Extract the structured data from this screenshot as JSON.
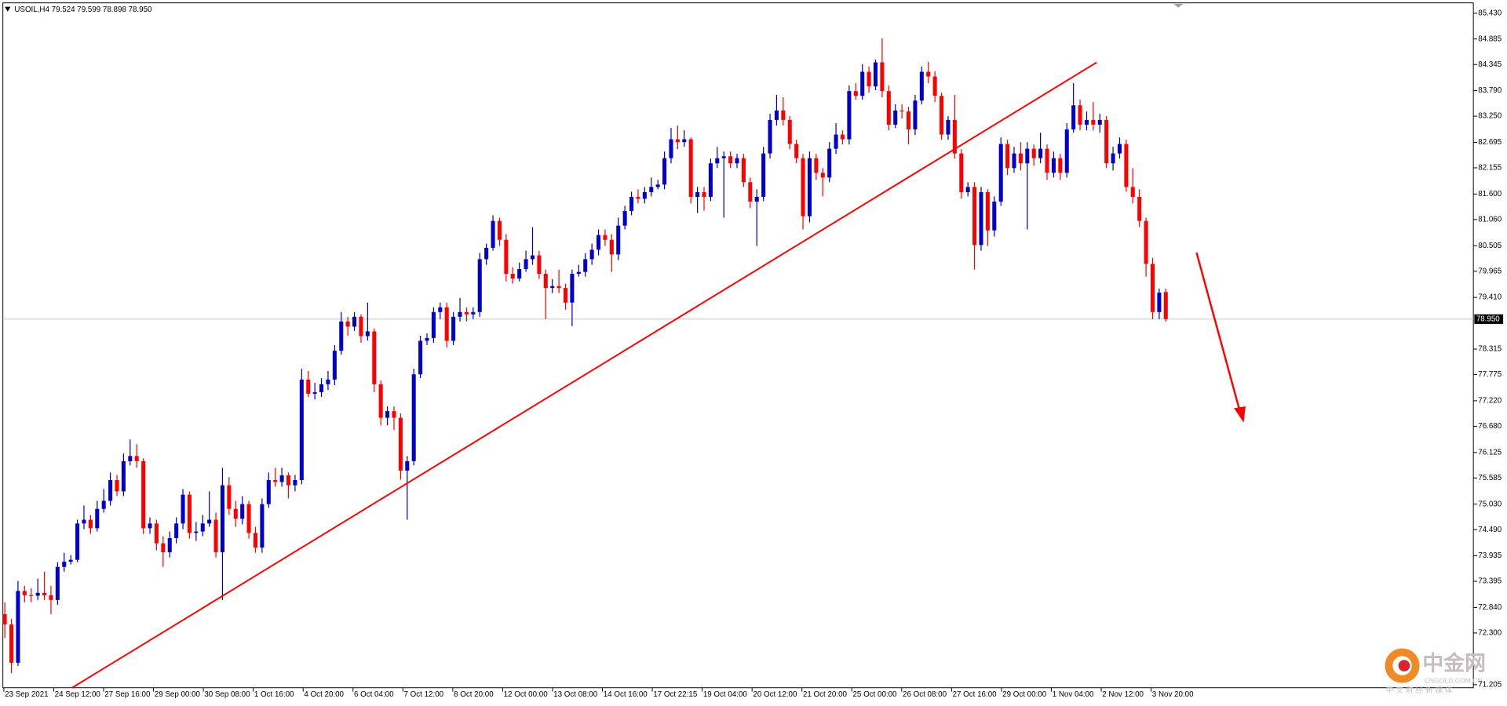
{
  "chart_data": {
    "type": "candlestick",
    "title": "USOIL,H4  79.524 79.599 78.898 78.950",
    "up_color": "#0000cd",
    "down_color": "#ff0000",
    "ylim": [
      71.14,
      85.65
    ],
    "yticks": [
      {
        "value": 85.43,
        "label": "85.430"
      },
      84.885,
      84.345,
      {
        "value": 83.79,
        "label": "83.790"
      },
      {
        "value": 83.25,
        "label": "83.250"
      },
      82.695,
      82.155,
      {
        "value": 81.6,
        "label": "81.600"
      },
      {
        "value": 81.06,
        "label": "81.060"
      },
      80.505,
      79.965,
      {
        "value": 79.41,
        "label": "79.410"
      },
      78.315,
      77.775,
      {
        "value": 77.22,
        "label": "77.220"
      },
      {
        "value": 76.68,
        "label": "76.680"
      },
      76.125,
      75.585,
      {
        "value": 75.03,
        "label": "75.030"
      },
      {
        "value": 74.49,
        "label": "74.490"
      },
      73.935,
      73.395,
      {
        "value": 72.84,
        "label": "72.840"
      },
      {
        "value": 72.3,
        "label": "72.300"
      },
      71.205
    ],
    "last_price": {
      "value": 78.95,
      "label": "78.950"
    },
    "xticks": [
      "23 Sep 2021",
      "24 Sep 12:00",
      "27 Sep 16:00",
      "29 Sep 00:00",
      "30 Sep 08:00",
      "1 Oct 16:00",
      "4 Oct 20:00",
      "6 Oct 04:00",
      "7 Oct 12:00",
      "8 Oct 20:00",
      "12 Oct 00:00",
      "13 Oct 08:00",
      "14 Oct 16:00",
      "17 Oct 22:15",
      "19 Oct 04:00",
      "20 Oct 12:00",
      "21 Oct 20:00",
      "25 Oct 00:00",
      "26 Oct 08:00",
      "27 Oct 16:00",
      "29 Oct 00:00",
      "1 Nov 04:00",
      "2 Nov 12:00",
      "3 Nov 20:00"
    ],
    "candles": [
      [
        72.7,
        72.95,
        72.2,
        72.48
      ],
      [
        72.48,
        72.6,
        71.45,
        71.67
      ],
      [
        71.67,
        73.4,
        71.6,
        73.19
      ],
      [
        73.19,
        73.3,
        72.95,
        73.1
      ],
      [
        73.1,
        73.25,
        72.95,
        73.09
      ],
      [
        73.09,
        73.45,
        73.0,
        73.15
      ],
      [
        73.15,
        73.6,
        73.0,
        73.1
      ],
      [
        73.1,
        73.3,
        72.7,
        73.0
      ],
      [
        73.0,
        73.8,
        72.9,
        73.7
      ],
      [
        73.7,
        74.0,
        73.6,
        73.81
      ],
      [
        73.81,
        73.95,
        73.75,
        73.85
      ],
      [
        73.85,
        74.7,
        73.8,
        74.62
      ],
      [
        74.62,
        75.0,
        74.5,
        74.7
      ],
      [
        74.7,
        74.8,
        74.4,
        74.52
      ],
      [
        74.52,
        75.1,
        74.45,
        74.93
      ],
      [
        74.93,
        75.35,
        74.85,
        75.1
      ],
      [
        75.1,
        75.7,
        75.0,
        75.54
      ],
      [
        75.54,
        75.65,
        75.2,
        75.3
      ],
      [
        75.3,
        76.1,
        75.2,
        75.94
      ],
      [
        75.94,
        76.4,
        75.85,
        76.05
      ],
      [
        76.05,
        76.3,
        75.8,
        75.94
      ],
      [
        75.94,
        76.0,
        74.4,
        74.52
      ],
      [
        74.52,
        74.75,
        74.4,
        74.62
      ],
      [
        74.62,
        74.7,
        74.05,
        74.2
      ],
      [
        74.2,
        74.35,
        73.7,
        74.01
      ],
      [
        74.01,
        74.45,
        73.9,
        74.31
      ],
      [
        74.31,
        74.75,
        74.2,
        74.62
      ],
      [
        74.62,
        75.35,
        74.5,
        75.23
      ],
      [
        75.23,
        75.3,
        74.3,
        74.42
      ],
      [
        74.42,
        74.65,
        74.25,
        74.45
      ],
      [
        74.45,
        74.8,
        74.35,
        74.62
      ],
      [
        74.62,
        75.3,
        74.55,
        74.7
      ],
      [
        74.7,
        74.85,
        73.9,
        74.01
      ],
      [
        74.01,
        75.8,
        73.0,
        75.43
      ],
      [
        75.43,
        75.6,
        74.8,
        74.93
      ],
      [
        74.93,
        75.1,
        74.55,
        74.72
      ],
      [
        74.72,
        75.2,
        74.6,
        75.03
      ],
      [
        75.03,
        75.1,
        74.3,
        74.42
      ],
      [
        74.42,
        74.55,
        74.0,
        74.11
      ],
      [
        74.11,
        75.15,
        74.0,
        75.03
      ],
      [
        75.03,
        75.7,
        74.95,
        75.54
      ],
      [
        75.54,
        75.8,
        75.4,
        75.5
      ],
      [
        75.5,
        75.8,
        75.4,
        75.64
      ],
      [
        75.64,
        75.7,
        75.15,
        75.43
      ],
      [
        75.43,
        75.65,
        75.3,
        75.54
      ],
      [
        75.54,
        77.9,
        75.45,
        77.67
      ],
      [
        77.67,
        77.85,
        77.3,
        77.37
      ],
      [
        77.37,
        77.6,
        77.25,
        77.4
      ],
      [
        77.4,
        77.7,
        77.3,
        77.57
      ],
      [
        77.57,
        77.85,
        77.45,
        77.67
      ],
      [
        77.67,
        78.4,
        77.55,
        78.28
      ],
      [
        78.28,
        79.1,
        78.2,
        78.9
      ],
      [
        78.9,
        79.0,
        78.6,
        78.79
      ],
      [
        78.79,
        79.1,
        78.7,
        79.0
      ],
      [
        79.0,
        79.05,
        78.45,
        78.59
      ],
      [
        78.59,
        79.3,
        78.5,
        78.69
      ],
      [
        78.69,
        78.75,
        77.4,
        77.57
      ],
      [
        77.57,
        77.65,
        76.7,
        76.86
      ],
      [
        76.86,
        77.1,
        76.7,
        77.0
      ],
      [
        77.0,
        77.1,
        76.6,
        76.86
      ],
      [
        76.86,
        76.95,
        75.55,
        75.74
      ],
      [
        75.74,
        76.05,
        74.7,
        75.94
      ],
      [
        75.94,
        77.9,
        75.85,
        77.78
      ],
      [
        77.78,
        78.6,
        77.7,
        78.49
      ],
      [
        78.49,
        78.65,
        78.4,
        78.55
      ],
      [
        78.55,
        79.2,
        78.45,
        79.1
      ],
      [
        79.1,
        79.3,
        78.95,
        79.2
      ],
      [
        79.2,
        79.3,
        78.35,
        78.49
      ],
      [
        78.49,
        79.1,
        78.4,
        79.0
      ],
      [
        79.0,
        79.4,
        78.9,
        79.1
      ],
      [
        79.1,
        79.2,
        78.9,
        79.05
      ],
      [
        79.05,
        79.2,
        78.95,
        79.1
      ],
      [
        79.1,
        80.35,
        79.0,
        80.22
      ],
      [
        80.22,
        80.55,
        80.1,
        80.46
      ],
      [
        80.46,
        81.15,
        80.4,
        81.03
      ],
      [
        81.03,
        81.1,
        80.5,
        80.63
      ],
      [
        80.63,
        80.75,
        79.75,
        79.91
      ],
      [
        79.91,
        80.05,
        79.7,
        79.81
      ],
      [
        79.81,
        80.15,
        79.75,
        80.01
      ],
      [
        80.01,
        80.4,
        79.95,
        80.22
      ],
      [
        80.22,
        80.9,
        80.1,
        80.3
      ],
      [
        80.3,
        80.4,
        79.8,
        79.91
      ],
      [
        79.91,
        80.0,
        78.95,
        79.61
      ],
      [
        79.61,
        79.8,
        79.5,
        79.65
      ],
      [
        79.65,
        80.0,
        79.5,
        79.61
      ],
      [
        79.61,
        79.7,
        79.15,
        79.3
      ],
      [
        79.3,
        80.0,
        78.8,
        79.91
      ],
      [
        79.91,
        80.1,
        79.85,
        79.95
      ],
      [
        79.95,
        80.35,
        79.85,
        80.22
      ],
      [
        80.22,
        80.55,
        80.1,
        80.42
      ],
      [
        80.42,
        80.85,
        80.3,
        80.73
      ],
      [
        80.73,
        80.85,
        80.5,
        80.63
      ],
      [
        80.63,
        80.75,
        79.95,
        80.32
      ],
      [
        80.32,
        81.1,
        80.2,
        80.93
      ],
      [
        80.93,
        81.35,
        80.85,
        81.24
      ],
      [
        81.24,
        81.65,
        81.15,
        81.54
      ],
      [
        81.54,
        81.7,
        81.4,
        81.5
      ],
      [
        81.5,
        81.75,
        81.4,
        81.64
      ],
      [
        81.64,
        81.95,
        81.55,
        81.75
      ],
      [
        81.75,
        81.9,
        81.7,
        81.8
      ],
      [
        81.8,
        82.5,
        81.7,
        82.36
      ],
      [
        82.36,
        83.0,
        82.25,
        82.76
      ],
      [
        82.76,
        83.05,
        82.55,
        82.7
      ],
      [
        82.7,
        82.95,
        82.6,
        82.76
      ],
      [
        82.76,
        82.8,
        81.4,
        81.54
      ],
      [
        81.54,
        81.75,
        81.2,
        81.64
      ],
      [
        81.64,
        81.75,
        81.25,
        81.54
      ],
      [
        81.54,
        82.35,
        81.45,
        82.25
      ],
      [
        82.25,
        82.6,
        82.15,
        82.36
      ],
      [
        82.36,
        82.5,
        81.1,
        82.4
      ],
      [
        82.4,
        82.5,
        82.15,
        82.25
      ],
      [
        82.25,
        82.45,
        82.15,
        82.36
      ],
      [
        82.36,
        82.45,
        81.75,
        81.85
      ],
      [
        81.85,
        81.95,
        81.3,
        81.44
      ],
      [
        81.44,
        81.7,
        80.5,
        81.54
      ],
      [
        81.54,
        82.6,
        81.45,
        82.46
      ],
      [
        82.46,
        83.3,
        82.35,
        83.17
      ],
      [
        83.17,
        83.7,
        83.05,
        83.37
      ],
      [
        83.37,
        83.65,
        83.05,
        83.17
      ],
      [
        83.17,
        83.25,
        82.55,
        82.66
      ],
      [
        82.66,
        82.75,
        82.25,
        82.36
      ],
      [
        82.36,
        82.45,
        80.85,
        81.13
      ],
      [
        81.13,
        82.5,
        81.0,
        82.36
      ],
      [
        82.36,
        82.45,
        81.9,
        82.05
      ],
      [
        82.05,
        82.15,
        81.55,
        81.95
      ],
      [
        81.95,
        82.7,
        81.85,
        82.56
      ],
      [
        82.56,
        83.1,
        82.45,
        82.86
      ],
      [
        82.86,
        82.95,
        82.65,
        82.76
      ],
      [
        82.76,
        83.9,
        82.65,
        83.78
      ],
      [
        83.78,
        83.95,
        83.6,
        83.68
      ],
      [
        83.68,
        84.35,
        83.6,
        84.19
      ],
      [
        84.19,
        84.3,
        83.75,
        83.88
      ],
      [
        83.88,
        84.45,
        83.8,
        84.39
      ],
      [
        84.39,
        84.9,
        83.65,
        83.78
      ],
      [
        83.78,
        83.9,
        82.95,
        83.07
      ],
      [
        83.07,
        83.5,
        83.0,
        83.37
      ],
      [
        83.37,
        83.5,
        83.2,
        83.35
      ],
      [
        83.35,
        83.45,
        82.65,
        82.97
      ],
      [
        82.97,
        83.7,
        82.85,
        83.58
      ],
      [
        83.58,
        84.3,
        83.5,
        84.19
      ],
      [
        84.19,
        84.4,
        83.95,
        84.09
      ],
      [
        84.09,
        84.2,
        83.55,
        83.68
      ],
      [
        83.68,
        83.75,
        82.75,
        82.86
      ],
      [
        82.86,
        83.25,
        82.75,
        83.17
      ],
      [
        83.17,
        83.7,
        82.35,
        82.46
      ],
      [
        82.46,
        82.55,
        81.5,
        81.64
      ],
      [
        81.64,
        81.85,
        81.55,
        81.75
      ],
      [
        81.75,
        81.85,
        80.0,
        80.52
      ],
      [
        80.52,
        81.75,
        80.4,
        81.64
      ],
      [
        81.64,
        81.7,
        80.5,
        80.83
      ],
      [
        80.83,
        81.55,
        80.7,
        81.44
      ],
      [
        81.44,
        82.8,
        81.35,
        82.66
      ],
      [
        82.66,
        82.75,
        82.0,
        82.15
      ],
      [
        82.15,
        82.6,
        82.05,
        82.46
      ],
      [
        82.46,
        82.7,
        82.1,
        82.25
      ],
      [
        82.25,
        82.7,
        80.85,
        82.56
      ],
      [
        82.56,
        82.65,
        82.2,
        82.36
      ],
      [
        82.36,
        82.9,
        82.25,
        82.56
      ],
      [
        82.56,
        82.65,
        81.9,
        82.05
      ],
      [
        82.05,
        82.5,
        81.95,
        82.36
      ],
      [
        82.36,
        82.45,
        81.9,
        82.05
      ],
      [
        82.05,
        83.1,
        81.95,
        82.97
      ],
      [
        82.97,
        83.95,
        82.9,
        83.48
      ],
      [
        83.48,
        83.6,
        82.95,
        83.07
      ],
      [
        83.07,
        83.35,
        82.95,
        83.17
      ],
      [
        83.17,
        83.55,
        82.95,
        83.07
      ],
      [
        83.07,
        83.3,
        82.9,
        83.17
      ],
      [
        83.17,
        83.25,
        82.15,
        82.25
      ],
      [
        82.25,
        82.6,
        82.1,
        82.46
      ],
      [
        82.46,
        82.8,
        82.35,
        82.66
      ],
      [
        82.66,
        82.75,
        81.65,
        81.75
      ],
      [
        81.75,
        82.15,
        81.4,
        81.54
      ],
      [
        81.54,
        81.7,
        80.9,
        81.03
      ],
      [
        81.03,
        81.1,
        79.85,
        80.12
      ],
      [
        80.12,
        80.25,
        78.95,
        79.1
      ],
      [
        79.1,
        79.6,
        78.95,
        79.51
      ],
      [
        79.524,
        79.599,
        78.898,
        78.95
      ]
    ]
  },
  "watermark": {
    "brand": "中金网",
    "site": "CNGOLD.COM.CN",
    "slogan": "中 文 财 经 新 媒 体"
  }
}
